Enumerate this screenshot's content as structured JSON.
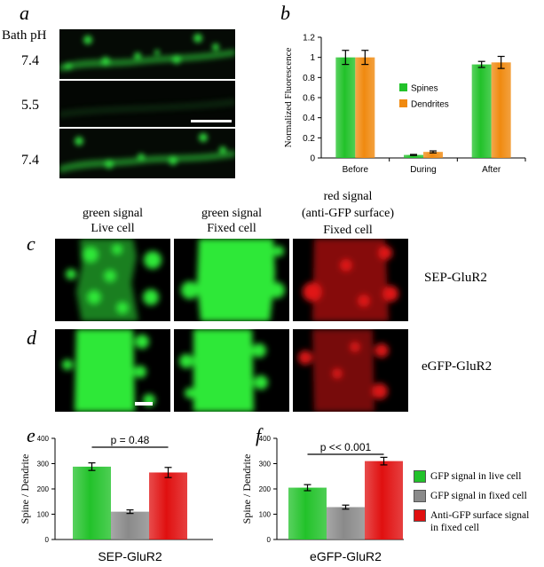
{
  "panel_labels": {
    "a": "a",
    "b": "b",
    "c": "c",
    "d": "d",
    "e": "e",
    "f": "f"
  },
  "panel_a": {
    "header": "Bath pH",
    "ph_labels": [
      "7.4",
      "5.5",
      "7.4"
    ]
  },
  "panel_cd": {
    "column_headers": [
      {
        "line1": "green signal",
        "line2": "Live cell"
      },
      {
        "line1": "green signal",
        "line2": "Fixed cell"
      },
      {
        "line1": "red signal",
        "line2": "(anti-GFP surface)",
        "line3": "Fixed cell"
      }
    ],
    "row_labels": [
      "SEP-GluR2",
      "eGFP-GluR2"
    ]
  },
  "colors": {
    "green": "#22c22a",
    "orange": "#f08a10",
    "gray": "#8a8a8a",
    "red": "#e01010"
  },
  "chart_data": [
    {
      "id": "b",
      "type": "bar",
      "categories": [
        "Before",
        "During",
        "After"
      ],
      "series": [
        {
          "name": "Spines",
          "color": "#22c22a",
          "values": [
            1.0,
            0.03,
            0.93
          ],
          "errors": [
            0.07,
            0.005,
            0.03
          ]
        },
        {
          "name": "Dendrites",
          "color": "#f08a10",
          "values": [
            1.0,
            0.06,
            0.95
          ],
          "errors": [
            0.07,
            0.01,
            0.06
          ]
        }
      ],
      "ylabel": "Normalized Fluorescence",
      "ylim": [
        0,
        1.2
      ],
      "yticks": [
        "0",
        "0.2",
        "0.4",
        "0.6",
        "0.8",
        "1",
        "1.2"
      ],
      "legend_position": "middle-right",
      "grid": false
    },
    {
      "id": "e",
      "type": "bar",
      "categories": [
        "",
        "",
        ""
      ],
      "values": [
        288,
        110,
        265
      ],
      "errors": [
        15,
        7,
        20
      ],
      "colors": [
        "#22c22a",
        "#8a8a8a",
        "#e01010"
      ],
      "ylabel": "Spine / Dendrite",
      "ylim": [
        0,
        400
      ],
      "yticks": [
        "0",
        "100",
        "200",
        "300",
        "400"
      ],
      "xlabel": "SEP-GluR2",
      "annotation": "p = 0.48"
    },
    {
      "id": "f",
      "type": "bar",
      "categories": [
        "",
        "",
        ""
      ],
      "values": [
        205,
        128,
        310
      ],
      "errors": [
        12,
        8,
        15
      ],
      "colors": [
        "#22c22a",
        "#8a8a8a",
        "#e01010"
      ],
      "ylabel": "Spine / Dendrite",
      "ylim": [
        0,
        400
      ],
      "yticks": [
        "0",
        "100",
        "200",
        "300",
        "400"
      ],
      "xlabel": "eGFP-GluR2",
      "annotation": "p << 0.001"
    }
  ],
  "legend_ef": [
    {
      "color": "#22c22a",
      "label": "GFP signal in live cell"
    },
    {
      "color": "#8a8a8a",
      "label": "GFP signal in fixed cell"
    },
    {
      "color": "#e01010",
      "label": "Anti-GFP surface signal",
      "label2": "in fixed cell"
    }
  ]
}
